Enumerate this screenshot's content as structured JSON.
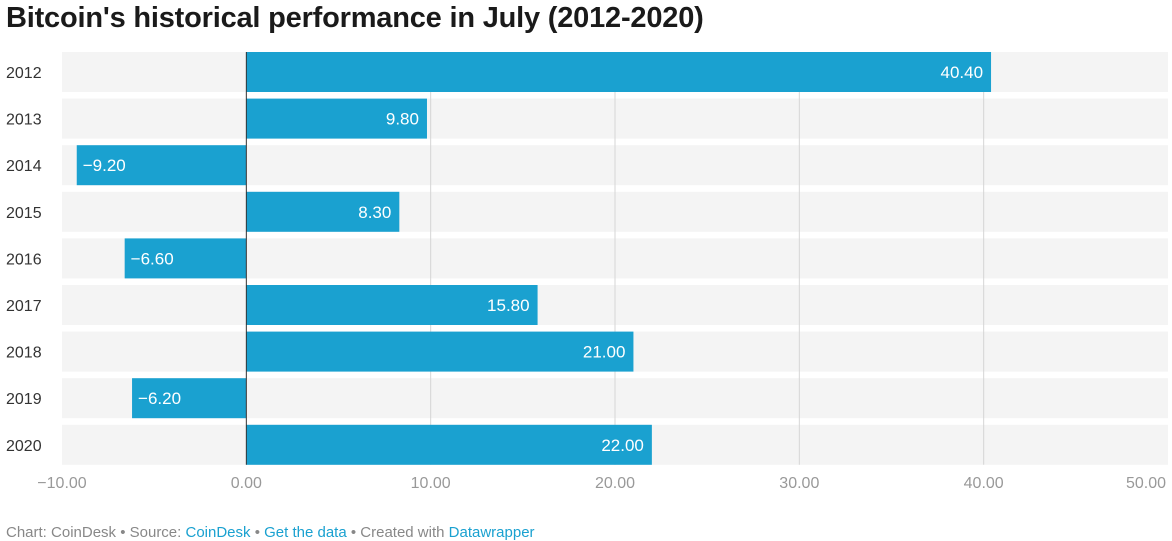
{
  "chart_data": {
    "type": "bar",
    "orientation": "horizontal",
    "title": "Bitcoin's historical performance in July (2012-2020)",
    "categories": [
      "2012",
      "2013",
      "2014",
      "2015",
      "2016",
      "2017",
      "2018",
      "2019",
      "2020"
    ],
    "values": [
      40.4,
      9.8,
      -9.2,
      8.3,
      -6.6,
      15.8,
      21.0,
      -6.2,
      22.0
    ],
    "value_labels": [
      "40.40",
      "9.80",
      "−9.20",
      "8.30",
      "−6.60",
      "15.80",
      "21.00",
      "−6.20",
      "22.00"
    ],
    "xlim": [
      -10,
      50
    ],
    "x_ticks": [
      -10,
      0,
      10,
      20,
      30,
      40,
      50
    ],
    "x_tick_labels": [
      "−10.00",
      "0.00",
      "10.00",
      "20.00",
      "30.00",
      "40.00",
      "50.00"
    ],
    "xlabel": "",
    "ylabel": "",
    "grid": true,
    "bar_color": "#1aa1d0",
    "row_background": "#f4f4f4"
  },
  "footer": {
    "prefix": "Chart: CoinDesk • Source: ",
    "source_link": "CoinDesk",
    "sep1": " • ",
    "data_link": "Get the data",
    "sep2": " • Created with ",
    "tool_link": "Datawrapper"
  }
}
